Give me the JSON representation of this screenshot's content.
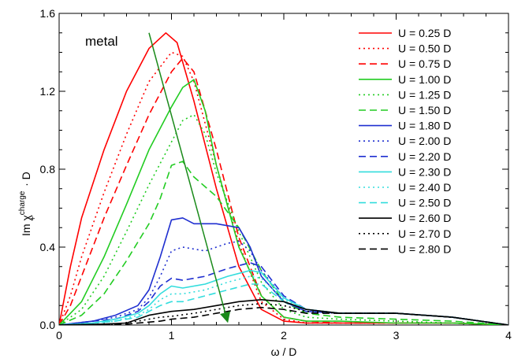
{
  "chart_data": {
    "type": "line",
    "title": "",
    "xlabel": "ω / D",
    "ylabel_parts": {
      "main": "Im χ",
      "superscript": "charge",
      "subscript": "+",
      "suffix": " · D"
    },
    "xlim": [
      0,
      4
    ],
    "ylim": [
      0,
      1.6
    ],
    "xticks": [
      "0",
      "1",
      "2",
      "3",
      "4"
    ],
    "yticks": [
      "0.0",
      "0.4",
      "0.8",
      "1.2",
      "1.6"
    ],
    "grid": false,
    "legend_position": "top-right",
    "annotation": "metal",
    "arrow": {
      "from": [
        0.8,
        1.5
      ],
      "to": [
        1.5,
        0.0
      ],
      "color": "#1a8a1a"
    },
    "series": [
      {
        "name": "U = 0.25 D",
        "color": "#ff0000",
        "dash": "solid",
        "x": [
          0,
          0.1,
          0.2,
          0.4,
          0.6,
          0.8,
          0.95,
          1.05,
          1.2,
          1.4,
          1.6,
          1.8,
          2.0,
          2.2,
          2.5,
          3,
          3.5,
          4
        ],
        "y": [
          0,
          0.3,
          0.55,
          0.9,
          1.2,
          1.42,
          1.5,
          1.45,
          1.15,
          0.7,
          0.3,
          0.08,
          0.02,
          0.01,
          0.01,
          0.01,
          0.01,
          0
        ]
      },
      {
        "name": "U = 0.50 D",
        "color": "#ff0000",
        "dash": "dot",
        "x": [
          0,
          0.1,
          0.2,
          0.4,
          0.6,
          0.8,
          1.0,
          1.1,
          1.2,
          1.4,
          1.6,
          1.8,
          2.0,
          2.2,
          2.5,
          3,
          3.5,
          4
        ],
        "y": [
          0,
          0.15,
          0.35,
          0.68,
          0.98,
          1.25,
          1.4,
          1.38,
          1.25,
          0.82,
          0.42,
          0.12,
          0.03,
          0.01,
          0.01,
          0.01,
          0.01,
          0
        ]
      },
      {
        "name": "U = 0.75 D",
        "color": "#ff0000",
        "dash": "dash",
        "x": [
          0,
          0.1,
          0.2,
          0.4,
          0.6,
          0.8,
          1.0,
          1.1,
          1.2,
          1.4,
          1.6,
          1.8,
          2.0,
          2.2,
          2.5,
          3,
          3.5,
          4
        ],
        "y": [
          0,
          0.1,
          0.25,
          0.55,
          0.82,
          1.08,
          1.3,
          1.37,
          1.3,
          0.9,
          0.45,
          0.15,
          0.04,
          0.02,
          0.01,
          0.01,
          0.01,
          0
        ]
      },
      {
        "name": "U = 1.00 D",
        "color": "#22cc22",
        "dash": "solid",
        "x": [
          0,
          0.2,
          0.4,
          0.6,
          0.8,
          1.0,
          1.1,
          1.2,
          1.3,
          1.4,
          1.6,
          1.8,
          2.0,
          2.2,
          2.5,
          3,
          3.5,
          4
        ],
        "y": [
          0,
          0.12,
          0.35,
          0.62,
          0.9,
          1.12,
          1.22,
          1.26,
          1.1,
          0.82,
          0.4,
          0.15,
          0.04,
          0.02,
          0.02,
          0.01,
          0.01,
          0
        ]
      },
      {
        "name": "U = 1.25 D",
        "color": "#22cc22",
        "dash": "dot",
        "x": [
          0,
          0.2,
          0.4,
          0.6,
          0.8,
          1.0,
          1.1,
          1.2,
          1.3,
          1.4,
          1.6,
          1.8,
          2.0,
          2.2,
          2.5,
          3,
          3.5,
          4
        ],
        "y": [
          0,
          0.08,
          0.25,
          0.48,
          0.72,
          0.94,
          1.05,
          1.08,
          0.98,
          0.78,
          0.48,
          0.22,
          0.08,
          0.04,
          0.03,
          0.02,
          0.01,
          0
        ]
      },
      {
        "name": "U = 1.50 D",
        "color": "#22cc22",
        "dash": "dash",
        "x": [
          0,
          0.2,
          0.4,
          0.6,
          0.8,
          0.9,
          1.0,
          1.1,
          1.2,
          1.4,
          1.6,
          1.8,
          2.0,
          2.2,
          2.5,
          3,
          3.5,
          4
        ],
        "y": [
          0,
          0.05,
          0.16,
          0.33,
          0.52,
          0.65,
          0.82,
          0.84,
          0.76,
          0.66,
          0.5,
          0.28,
          0.12,
          0.06,
          0.04,
          0.03,
          0.02,
          0
        ]
      },
      {
        "name": "U = 1.80 D",
        "color": "#1f2fd0",
        "dash": "solid",
        "x": [
          0,
          0.3,
          0.5,
          0.7,
          0.8,
          0.9,
          1.0,
          1.1,
          1.2,
          1.4,
          1.6,
          1.7,
          1.8,
          2.0,
          2.2,
          2.5,
          3,
          3.5,
          4
        ],
        "y": [
          0,
          0.02,
          0.05,
          0.1,
          0.18,
          0.35,
          0.54,
          0.55,
          0.52,
          0.52,
          0.5,
          0.4,
          0.25,
          0.12,
          0.07,
          0.06,
          0.06,
          0.04,
          0
        ]
      },
      {
        "name": "U = 2.00 D",
        "color": "#1f2fd0",
        "dash": "dot",
        "x": [
          0,
          0.3,
          0.5,
          0.7,
          0.8,
          0.9,
          1.0,
          1.1,
          1.3,
          1.5,
          1.6,
          1.7,
          1.8,
          2.0,
          2.2,
          2.5,
          3,
          3.5,
          4
        ],
        "y": [
          0,
          0.02,
          0.04,
          0.08,
          0.14,
          0.25,
          0.38,
          0.4,
          0.38,
          0.42,
          0.43,
          0.38,
          0.28,
          0.14,
          0.08,
          0.06,
          0.06,
          0.04,
          0
        ]
      },
      {
        "name": "U = 2.20 D",
        "color": "#1f2fd0",
        "dash": "dash",
        "x": [
          0,
          0.3,
          0.5,
          0.7,
          0.8,
          0.9,
          1.0,
          1.1,
          1.3,
          1.5,
          1.7,
          1.8,
          2.0,
          2.2,
          2.5,
          3,
          3.5,
          4
        ],
        "y": [
          0,
          0.02,
          0.03,
          0.07,
          0.12,
          0.2,
          0.24,
          0.23,
          0.25,
          0.29,
          0.32,
          0.3,
          0.15,
          0.08,
          0.06,
          0.06,
          0.04,
          0
        ]
      },
      {
        "name": "U = 2.30 D",
        "color": "#33dddd",
        "dash": "solid",
        "x": [
          0,
          0.3,
          0.5,
          0.7,
          0.8,
          0.9,
          1.0,
          1.1,
          1.3,
          1.5,
          1.7,
          1.8,
          2.0,
          2.2,
          2.5,
          3,
          3.5,
          4
        ],
        "y": [
          0,
          0.01,
          0.03,
          0.06,
          0.1,
          0.16,
          0.2,
          0.19,
          0.21,
          0.25,
          0.28,
          0.27,
          0.14,
          0.08,
          0.06,
          0.06,
          0.04,
          0
        ]
      },
      {
        "name": "U = 2.40 D",
        "color": "#33dddd",
        "dash": "dot",
        "x": [
          0,
          0.3,
          0.5,
          0.7,
          0.8,
          0.9,
          1.0,
          1.1,
          1.3,
          1.5,
          1.7,
          1.8,
          2.0,
          2.2,
          2.5,
          3,
          3.5,
          4
        ],
        "y": [
          0,
          0.01,
          0.02,
          0.05,
          0.08,
          0.13,
          0.16,
          0.16,
          0.18,
          0.22,
          0.25,
          0.24,
          0.13,
          0.08,
          0.06,
          0.06,
          0.04,
          0
        ]
      },
      {
        "name": "U = 2.50 D",
        "color": "#33dddd",
        "dash": "dash",
        "x": [
          0,
          0.3,
          0.5,
          0.7,
          0.8,
          0.9,
          1.0,
          1.1,
          1.3,
          1.5,
          1.7,
          1.8,
          2.0,
          2.2,
          2.5,
          3,
          3.5,
          4
        ],
        "y": [
          0,
          0.01,
          0.02,
          0.04,
          0.07,
          0.1,
          0.12,
          0.12,
          0.15,
          0.18,
          0.21,
          0.21,
          0.12,
          0.08,
          0.06,
          0.06,
          0.04,
          0
        ]
      },
      {
        "name": "U = 2.60 D",
        "color": "#000000",
        "dash": "solid",
        "x": [
          0,
          0.4,
          0.6,
          0.7,
          0.8,
          0.9,
          1.0,
          1.2,
          1.4,
          1.6,
          1.8,
          2.0,
          2.2,
          2.5,
          3,
          3.5,
          4
        ],
        "y": [
          0,
          0.005,
          0.01,
          0.03,
          0.05,
          0.06,
          0.07,
          0.08,
          0.1,
          0.12,
          0.13,
          0.12,
          0.08,
          0.06,
          0.06,
          0.04,
          0
        ]
      },
      {
        "name": "U = 2.70 D",
        "color": "#000000",
        "dash": "dot",
        "x": [
          0,
          0.5,
          0.7,
          0.8,
          0.9,
          1.0,
          1.2,
          1.4,
          1.6,
          1.8,
          2.0,
          2.2,
          2.5,
          3,
          3.5,
          4
        ],
        "y": [
          0,
          0.005,
          0.02,
          0.03,
          0.04,
          0.045,
          0.06,
          0.08,
          0.1,
          0.11,
          0.1,
          0.07,
          0.06,
          0.06,
          0.04,
          0
        ]
      },
      {
        "name": "U = 2.80 D",
        "color": "#000000",
        "dash": "dash",
        "x": [
          0,
          0.6,
          0.8,
          0.9,
          1.0,
          1.2,
          1.4,
          1.6,
          1.8,
          2.0,
          2.2,
          2.5,
          3,
          3.5,
          4
        ],
        "y": [
          0,
          0.005,
          0.015,
          0.02,
          0.03,
          0.04,
          0.06,
          0.08,
          0.09,
          0.08,
          0.06,
          0.06,
          0.06,
          0.04,
          0
        ]
      }
    ]
  }
}
